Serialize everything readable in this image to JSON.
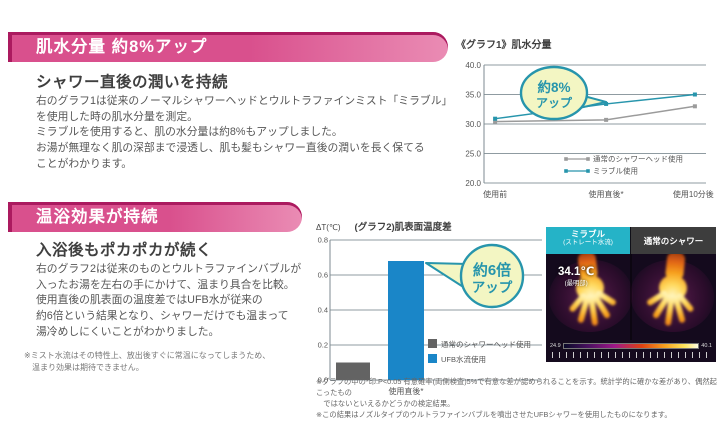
{
  "colors": {
    "pink_dark": "#ab1a5f",
    "pink": "#d9508d",
    "pink_light": "#ea8cb4",
    "teal": "#2795ac",
    "teal_bright": "#25b3c7",
    "grid": "#8f9ba1",
    "callout_fill": "#f3f6c3",
    "bar_blue": "#1a86c8",
    "bar_gray": "#636363",
    "text_dark": "#3f3f3f",
    "text_body": "#565656"
  },
  "section1": {
    "banner": "肌水分量 約8%アップ",
    "heading": "シャワー直後の潤いを持続",
    "body": "右のグラフ1は従来のノーマルシャワーヘッドとウルトラファインミスト「ミラブル」\nを使用した時の肌水分量を測定。\nミラブルを使用すると、肌の水分量は約8%もアップしました。\nお湯が無理なく肌の深部まで浸透し、肌も髪もシャワー直後の潤いを長く保てる\nことがわかります。"
  },
  "section2": {
    "banner": "温浴効果が持続",
    "heading": "入浴後もポカポカが続く",
    "body": "右のグラフ2は従来のものとウルトラファインバブルが\n入ったお湯を左右の手にかけて、温まり具合を比較。\n使用直後の肌表面の温度差ではUFB水が従来の\n約6倍という結果となり、シャワーだけでも温まって\n湯冷めしにくいことがわかりました。",
    "footnote": "※ミスト水流はその特性上、放出後すぐに常温になってしまうため、\n　温まり効果は期待できません。"
  },
  "chart_data": [
    {
      "type": "line",
      "title": "《グラフ1》肌水分量",
      "categories": [
        "使用前",
        "使用直後*",
        "使用10分後*"
      ],
      "series": [
        {
          "name": "通常のシャワーヘッド使用",
          "color": "#9b9b9b",
          "values": [
            30.4,
            30.7,
            33.0
          ]
        },
        {
          "name": "ミラブル使用",
          "color": "#2795ac",
          "values": [
            30.9,
            33.4,
            35.0
          ]
        }
      ],
      "ylim": [
        20,
        40
      ],
      "yticks": [
        40.0,
        35.0,
        30.0,
        25.0,
        20.0
      ],
      "grid": true,
      "legend_position": "inside-bottom-right",
      "callout": {
        "line1": "約8%",
        "line2": "アップ"
      }
    },
    {
      "type": "bar",
      "title": "(グラフ2)肌表面温度差",
      "ylabel": "ΔT(℃)",
      "categories": [
        "使用直後*"
      ],
      "series": [
        {
          "name": "通常のシャワーヘッド使用",
          "color": "#636363",
          "values": [
            0.1
          ]
        },
        {
          "name": "UFB水流使用",
          "color": "#1a86c8",
          "values": [
            0.68
          ]
        }
      ],
      "ylim": [
        0,
        0.8
      ],
      "yticks": [
        0.8,
        0.6,
        0.4,
        0.2,
        0.0
      ],
      "grid": true,
      "legend_position": "inside-bottom-right",
      "callout": {
        "line1": "約6倍",
        "line2": "アップ"
      }
    }
  ],
  "thermal": {
    "left_title": "ミラブル",
    "left_subtitle": "(ストレート水流)",
    "right_title": "通常のシャワー",
    "temp": "34.1℃",
    "temp_note": "(最明部)",
    "scale_min": "24.9",
    "scale_max": "40.1"
  },
  "footnotes_right": "※グラフの中の*印:P<0.05 有意確率(両側検査)5%で有意な差が認められることを示す。統計学的に確かな差があり、偶然起こったもの\n　ではないといえるかどうかの検定結果。\n※この結果はノズルタイプのウルトラファインバブルを噴出させたUFBシャワーを使用したものになります。"
}
